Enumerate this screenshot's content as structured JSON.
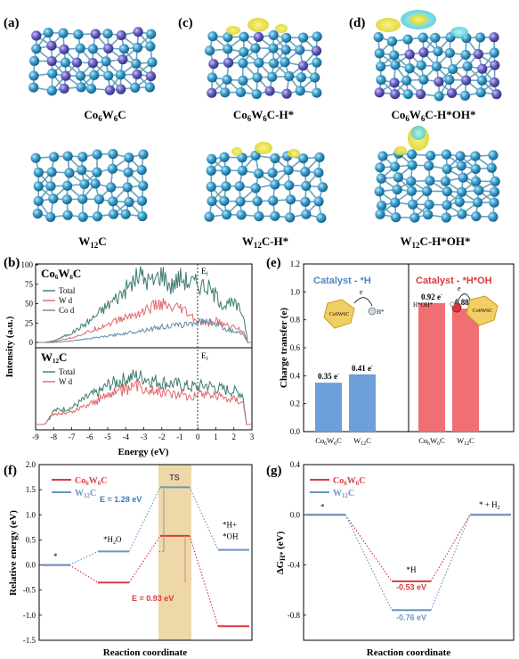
{
  "panels": {
    "a": "(a)",
    "b": "(b)",
    "c": "(c)",
    "d": "(d)",
    "e": "(e)",
    "f": "(f)",
    "g": "(g)"
  },
  "models": {
    "a_top": {
      "base": "Co",
      "s1": "6",
      "mid": "W",
      "s2": "6",
      "tail": "C"
    },
    "c_top": {
      "base": "Co",
      "s1": "6",
      "mid": "W",
      "s2": "6",
      "tail": "C-H*"
    },
    "d_top": {
      "base": "Co",
      "s1": "6",
      "mid": "W",
      "s2": "6",
      "tail": "C-H*OH*"
    },
    "a_bot": {
      "base": "W",
      "s1": "12",
      "tail": "C"
    },
    "c_bot": {
      "base": "W",
      "s1": "12",
      "tail": "C-H*"
    },
    "d_bot": {
      "base": "W",
      "s1": "12",
      "tail": "C-H*OH*"
    }
  },
  "colors": {
    "total": "#3d7a6e",
    "wd": "#e0676a",
    "cod": "#5f8aa6",
    "bar_blue": "#6d9fd8",
    "bar_red": "#ef6f73",
    "co6w6c": "#d93a3f",
    "w12c": "#6a95c4",
    "ts_box": "#ecd49e",
    "atom": "#3ea0cd",
    "atom_co": "#6a64c4",
    "iso": "#e8e23a"
  },
  "chart_data": [
    {
      "type": "line",
      "panel": "b-top",
      "title_parts": {
        "base": "Co",
        "s1": "6",
        "mid": "W",
        "s2": "6",
        "tail": "C"
      },
      "ylabel": "Intensity (a.u.)",
      "xlabel": "Energy (eV)",
      "ylim": [
        0,
        100
      ],
      "yticks": [
        "0",
        "25",
        "50",
        "75",
        "100"
      ],
      "fermi_label": "E",
      "fermi_sub": "f",
      "legend": [
        "Total",
        "W d",
        "Co d"
      ],
      "series": [
        {
          "name": "Total",
          "x": [
            -8.5,
            -8,
            -7,
            -6,
            -5,
            -4,
            -3.2,
            -3,
            -2.5,
            -2,
            -1.5,
            -1,
            -0.5,
            0,
            0.5,
            1,
            1.5,
            2,
            2.5,
            2.7
          ],
          "values": [
            0,
            2,
            12,
            28,
            48,
            68,
            88,
            82,
            78,
            90,
            72,
            84,
            78,
            76,
            72,
            60,
            48,
            50,
            38,
            12
          ]
        },
        {
          "name": "W d",
          "x": [
            -8.5,
            -8,
            -7,
            -6,
            -5,
            -4,
            -3,
            -2.5,
            -2,
            -1.5,
            -1,
            -0.5,
            0,
            0.5,
            1,
            1.5,
            2,
            2.5,
            2.7
          ],
          "values": [
            0,
            1,
            6,
            14,
            24,
            32,
            40,
            46,
            50,
            42,
            44,
            36,
            26,
            24,
            28,
            22,
            20,
            15,
            5
          ]
        },
        {
          "name": "Co d",
          "x": [
            -8.5,
            -8,
            -7,
            -6,
            -5,
            -4,
            -3,
            -2,
            -1,
            -0.5,
            0,
            0.5,
            1,
            1.5,
            2,
            2.5,
            2.7
          ],
          "values": [
            0,
            0,
            2,
            5,
            8,
            12,
            16,
            20,
            22,
            24,
            26,
            28,
            24,
            18,
            14,
            10,
            3
          ]
        }
      ]
    },
    {
      "type": "line",
      "panel": "b-bottom",
      "title_parts": {
        "base": "W",
        "s1": "12",
        "tail": "C"
      },
      "fermi_label": "E",
      "fermi_sub": "f",
      "legend": [
        "Total",
        "W d"
      ],
      "xlim": [
        -9,
        3
      ],
      "xticks": [
        "-9",
        "-8",
        "-7",
        "-6",
        "-5",
        "-4",
        "-3",
        "-2",
        "-1",
        "0",
        "1",
        "2",
        "3"
      ],
      "series": [
        {
          "name": "Total",
          "x": [
            -8.5,
            -8,
            -7.5,
            -7,
            -6.5,
            -6,
            -5.5,
            -5,
            -4.5,
            -4,
            -3.5,
            -3,
            -2.5,
            -2,
            -1.5,
            -1,
            -0.5,
            0,
            0.5,
            1,
            1.5,
            2,
            2.5,
            2.7
          ],
          "values": [
            0,
            18,
            20,
            22,
            30,
            38,
            42,
            52,
            56,
            60,
            64,
            62,
            58,
            56,
            54,
            52,
            50,
            50,
            52,
            48,
            46,
            44,
            40,
            0
          ]
        },
        {
          "name": "W d",
          "x": [
            -8.5,
            -8,
            -7.5,
            -7,
            -6.5,
            -6,
            -5.5,
            -5,
            -4.5,
            -4,
            -3.5,
            -3,
            -2.5,
            -2,
            -1.5,
            -1,
            -0.5,
            0,
            0.5,
            1,
            1.5,
            2,
            2.5,
            2.7
          ],
          "values": [
            0,
            14,
            15,
            16,
            22,
            28,
            32,
            40,
            44,
            46,
            50,
            48,
            46,
            44,
            42,
            40,
            38,
            40,
            42,
            38,
            36,
            34,
            32,
            0
          ]
        }
      ]
    },
    {
      "type": "bar",
      "panel": "e",
      "ylabel": "Charge transfer (e)",
      "ylim": [
        0,
        1.2
      ],
      "yticks": [
        "0.0",
        "0.2",
        "0.4",
        "0.6",
        "0.8",
        "1.0",
        "1.2"
      ],
      "group_titles": [
        "Catalyst - *H",
        "Catalyst - *H*OH"
      ],
      "categories": [
        "Co6W6C",
        "W12C",
        "Co6W6C",
        "W12C"
      ],
      "values": [
        0.35,
        0.41,
        0.92,
        0.88
      ],
      "value_labels": [
        "0.35 e",
        "0.41 e",
        "0.92 e",
        "0.88 e"
      ],
      "label_sup": "-",
      "inset": {
        "left": "Co6W6C",
        "right": "H*",
        "arrow": "e",
        "adsorbate": "H*OH*"
      }
    },
    {
      "type": "line",
      "panel": "f",
      "ylabel": "Relative energy (eV)",
      "xlabel": "Reaction coordinate",
      "ylim": [
        -1.5,
        2.0
      ],
      "yticks": [
        "2.0",
        "1.5",
        "1.0",
        "0.5",
        "0.0",
        "-0.5",
        "-1.0",
        "-1.5"
      ],
      "series": [
        {
          "name": "Co6W6C",
          "states": [
            "*",
            "*H2O",
            "TS",
            "*H+*OH"
          ],
          "values": [
            0,
            -0.35,
            0.58,
            -1.22
          ]
        },
        {
          "name": "W12C",
          "states": [
            "*",
            "*H2O",
            "TS",
            "*H+*OH"
          ],
          "values": [
            0,
            0.27,
            1.55,
            0.3
          ]
        }
      ],
      "labels": {
        "ts": "TS",
        "e1": "E = 1.28 eV",
        "e2": "E = 0.93 eV",
        "h2o": "*H",
        "h2o_sub": "2",
        "h2o_tail": "O",
        "star": "*",
        "product1": "*H+",
        "product2": "*OH"
      }
    },
    {
      "type": "line",
      "panel": "g",
      "ylabel": "ΔG",
      "ylabel_sub": "H*",
      "ylabel_tail": " (eV)",
      "xlabel": "Reaction coordinate",
      "ylim": [
        -1.0,
        0.4
      ],
      "yticks": [
        "0.4",
        "0.0",
        "-0.4",
        "-0.8"
      ],
      "series": [
        {
          "name": "Co6W6C",
          "states": [
            "*",
            "*H",
            "* + H2"
          ],
          "values": [
            0,
            -0.53,
            0
          ]
        },
        {
          "name": "W12C",
          "states": [
            "*",
            "*H",
            "* + H2"
          ],
          "values": [
            0,
            -0.76,
            0
          ]
        }
      ],
      "labels": {
        "star": "*",
        "h": "*H",
        "v1": "-0.53 eV",
        "v2": "-0.76 eV",
        "end": "* + H",
        "end_sub": "2"
      }
    }
  ],
  "legend_names": {
    "co": {
      "base": "Co",
      "s1": "6",
      "mid": "W",
      "s2": "6",
      "tail": "C"
    },
    "w": {
      "base": "W",
      "s1": "12",
      "tail": "C"
    }
  }
}
